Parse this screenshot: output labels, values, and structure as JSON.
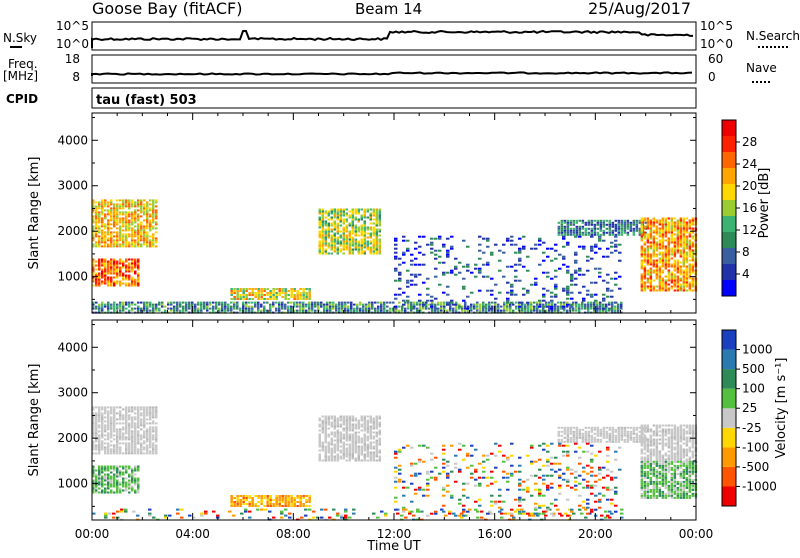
{
  "header": {
    "station": "Goose Bay (fitACF)",
    "beam": "Beam 14",
    "date": "25/Aug/2017"
  },
  "strip_labels": {
    "nsky": "N.Sky",
    "nsky_ticks": [
      "10^5",
      "10^0"
    ],
    "nsearch": "N.Search",
    "nsearch_ticks": [
      "10^5",
      "10^0"
    ],
    "freq_top": "Freq.",
    "freq_unit": "[MHz]",
    "freq_ticks": [
      "18",
      "8"
    ],
    "nave": "Nave",
    "nave_ticks": [
      "60",
      "0"
    ],
    "cpid": "CPID",
    "cpid_value": "tau (fast) 503"
  },
  "chart_data": [
    {
      "type": "heatmap",
      "name": "power",
      "ylabel": "Slant Range [km]",
      "ylim": [
        200,
        4600
      ],
      "y_ticks": [
        "1000",
        "2000",
        "3000",
        "4000"
      ],
      "x_ticks": [
        "00:00",
        "04:00",
        "08:00",
        "12:00",
        "16:00",
        "20:00",
        "00:00"
      ],
      "xlim_hours": [
        0,
        24
      ],
      "colorbar": {
        "label": "Power [dB]",
        "ticks": [
          "4",
          "8",
          "12",
          "16",
          "20",
          "24",
          "28"
        ],
        "colors": [
          "#0000ff",
          "#2233aa",
          "#3a5fa0",
          "#2e8b57",
          "#3cb371",
          "#9acd32",
          "#ffd700",
          "#ffa500",
          "#ff6600",
          "#ff2200",
          "#ee0000"
        ]
      },
      "echo_regions": [
        {
          "t0": 0.0,
          "t1": 2.6,
          "r0": 1650,
          "r1": 2700,
          "level": 0.65
        },
        {
          "t0": 0.0,
          "t1": 1.8,
          "r0": 800,
          "r1": 1400,
          "level": 0.8
        },
        {
          "t0": 5.5,
          "t1": 8.6,
          "r0": 500,
          "r1": 750,
          "level": 0.6
        },
        {
          "t0": 9.0,
          "t1": 11.4,
          "r0": 1500,
          "r1": 2500,
          "level": 0.5
        },
        {
          "t0": 18.5,
          "t1": 22.0,
          "r0": 1900,
          "r1": 2250,
          "level": 0.25
        },
        {
          "t0": 21.8,
          "t1": 24.0,
          "r0": 700,
          "r1": 2300,
          "level": 0.7
        },
        {
          "t0": 0.0,
          "t1": 21.0,
          "r0": 200,
          "r1": 450,
          "level": 0.3
        },
        {
          "t0": 12.0,
          "t1": 21.0,
          "r0": 300,
          "r1": 1900,
          "level": 0.15
        }
      ]
    },
    {
      "type": "heatmap",
      "name": "velocity",
      "ylabel": "Slant Range [km]",
      "ylim": [
        200,
        4600
      ],
      "y_ticks": [
        "1000",
        "2000",
        "3000",
        "4000"
      ],
      "x_ticks": [
        "00:00",
        "04:00",
        "08:00",
        "12:00",
        "16:00",
        "20:00",
        "00:00"
      ],
      "xlabel": "Time UT",
      "xlim_hours": [
        0,
        24
      ],
      "colorbar": {
        "label": "Velocity [m s⁻¹]",
        "ticks": [
          "1000",
          "500",
          "100",
          "25",
          "-25",
          "-100",
          "-500",
          "-1000"
        ],
        "colors": [
          "#1a3fbf",
          "#2a7ab0",
          "#2e8b57",
          "#55c040",
          "#c8c8c8",
          "#ffd700",
          "#ff9900",
          "#ff5500",
          "#ee0000"
        ]
      },
      "echo_regions": [
        {
          "t0": 0.0,
          "t1": 2.6,
          "r0": 1650,
          "r1": 2700,
          "vel": "gs"
        },
        {
          "t0": 0.0,
          "t1": 1.8,
          "r0": 800,
          "r1": 1400,
          "vel": "pos"
        },
        {
          "t0": 5.5,
          "t1": 8.6,
          "r0": 500,
          "r1": 750,
          "vel": "neg"
        },
        {
          "t0": 9.0,
          "t1": 11.4,
          "r0": 1500,
          "r1": 2500,
          "vel": "gs"
        },
        {
          "t0": 18.5,
          "t1": 22.0,
          "r0": 1900,
          "r1": 2250,
          "vel": "gs"
        },
        {
          "t0": 21.8,
          "t1": 24.0,
          "r0": 1500,
          "r1": 2300,
          "vel": "gs"
        },
        {
          "t0": 21.8,
          "t1": 24.0,
          "r0": 700,
          "r1": 1500,
          "vel": "pos"
        },
        {
          "t0": 0.0,
          "t1": 21.0,
          "r0": 200,
          "r1": 450,
          "vel": "mix"
        },
        {
          "t0": 12.0,
          "t1": 21.0,
          "r0": 300,
          "r1": 1900,
          "vel": "mix"
        }
      ]
    }
  ]
}
